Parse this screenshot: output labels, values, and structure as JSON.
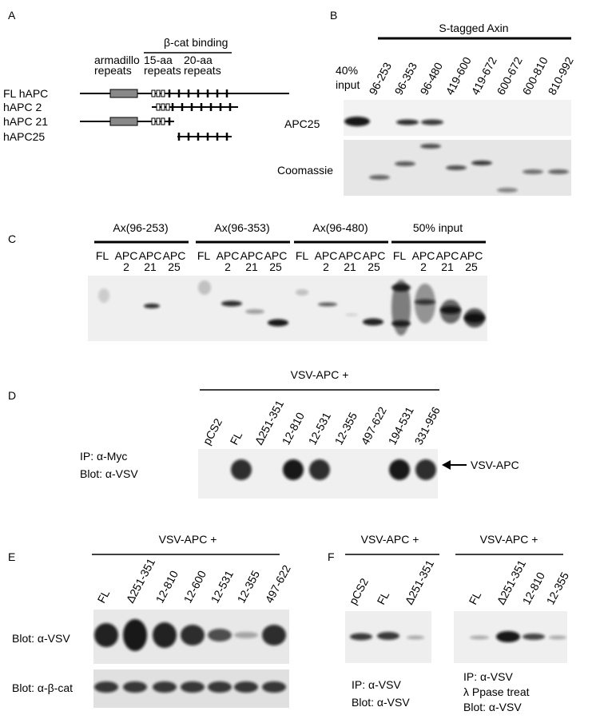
{
  "panels": {
    "A": {
      "label": "A",
      "binding_label": "β-cat binding",
      "domain_labels": [
        [
          "armadillo",
          "repeats"
        ],
        [
          "15-aa",
          "repeats"
        ],
        [
          "20-aa",
          "repeats"
        ]
      ],
      "constructs": [
        "FL hAPC",
        "hAPC 2",
        "hAPC 21",
        "hAPC25"
      ]
    },
    "B": {
      "label": "B",
      "header": "S-tagged Axin",
      "input_label": [
        "40%",
        "input"
      ],
      "lanes": [
        "96-253",
        "96-353",
        "96-480",
        "419-600",
        "419-672",
        "600-672",
        "600-810",
        "810-992"
      ],
      "row_labels": [
        "APC25",
        "Coomassie"
      ]
    },
    "C": {
      "label": "C",
      "groups": [
        {
          "name": "Ax(96-253)",
          "lanes": [
            [
              "FL"
            ],
            [
              "APC",
              "2"
            ],
            [
              "APC",
              "21"
            ],
            [
              "APC",
              "25"
            ]
          ]
        },
        {
          "name": "Ax(96-353)",
          "lanes": [
            [
              "FL"
            ],
            [
              "APC",
              "2"
            ],
            [
              "APC",
              "21"
            ],
            [
              "APC",
              "25"
            ]
          ]
        },
        {
          "name": "Ax(96-480)",
          "lanes": [
            [
              "FL"
            ],
            [
              "APC",
              "2"
            ],
            [
              "APC",
              "21"
            ],
            [
              "APC",
              "25"
            ]
          ]
        },
        {
          "name": "50% input",
          "lanes": [
            [
              "FL"
            ],
            [
              "APC",
              "2"
            ],
            [
              "APC",
              "21"
            ],
            [
              "APC",
              "25"
            ]
          ]
        }
      ]
    },
    "D": {
      "label": "D",
      "header": "VSV-APC +",
      "lanes": [
        "pCS2",
        "FL",
        "Δ251-351",
        "12-810",
        "12-531",
        "12-355",
        "497-622",
        "194-531",
        "331-956"
      ],
      "row_labels": [
        "IP: α-Myc",
        "Blot: α-VSV"
      ],
      "arrow_label": "VSV-APC"
    },
    "E": {
      "label": "E",
      "header": "VSV-APC +",
      "lanes": [
        "FL",
        "Δ251-351",
        "12-810",
        "12-600",
        "12-531",
        "12-355",
        "497-622"
      ],
      "row_labels": [
        "Blot: α-VSV",
        "Blot: α-β-cat"
      ]
    },
    "F": {
      "label": "F",
      "left": {
        "header": "VSV-APC +",
        "lanes": [
          "pCS2",
          "FL",
          "Δ251-351"
        ],
        "notes": [
          "IP: α-VSV",
          "Blot: α-VSV"
        ]
      },
      "right": {
        "header": "VSV-APC +",
        "lanes": [
          "FL",
          "Δ251-351",
          "12-810",
          "12-355"
        ],
        "notes": [
          "IP: α-VSV",
          "λ Ppase treat",
          "Blot: α-VSV"
        ]
      }
    }
  }
}
